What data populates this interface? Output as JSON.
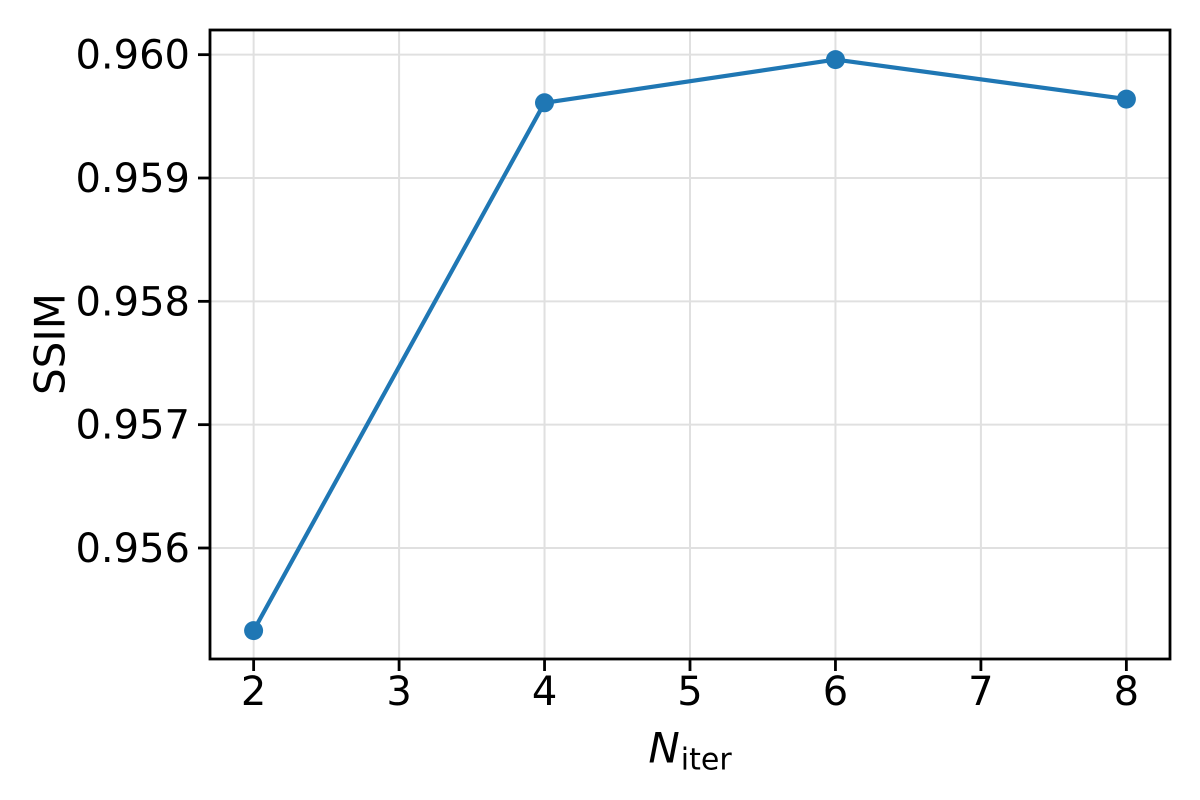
{
  "chart_data": {
    "type": "line",
    "x": [
      2,
      4,
      6,
      8
    ],
    "y": [
      0.95533,
      0.95961,
      0.95996,
      0.95964
    ],
    "title": "",
    "xlabel_main": "N",
    "xlabel_sub": "iter",
    "ylabel": "SSIM",
    "xticks": [
      2,
      3,
      4,
      5,
      6,
      7,
      8
    ],
    "xtick_labels": [
      "2",
      "3",
      "4",
      "5",
      "6",
      "7",
      "8"
    ],
    "yticks": [
      0.956,
      0.957,
      0.958,
      0.959,
      0.96
    ],
    "ytick_labels": [
      "0.956",
      "0.957",
      "0.958",
      "0.959",
      "0.960"
    ],
    "xlim": [
      1.7,
      8.3
    ],
    "ylim": [
      0.9551,
      0.9602
    ],
    "grid": true,
    "legend": "none",
    "marker": "circle",
    "colors": {
      "line": "#1f77b4",
      "marker": "#1f77b4",
      "grid": "#e0e0e0",
      "axis": "#000000",
      "text": "#000000",
      "background": "#ffffff"
    }
  }
}
